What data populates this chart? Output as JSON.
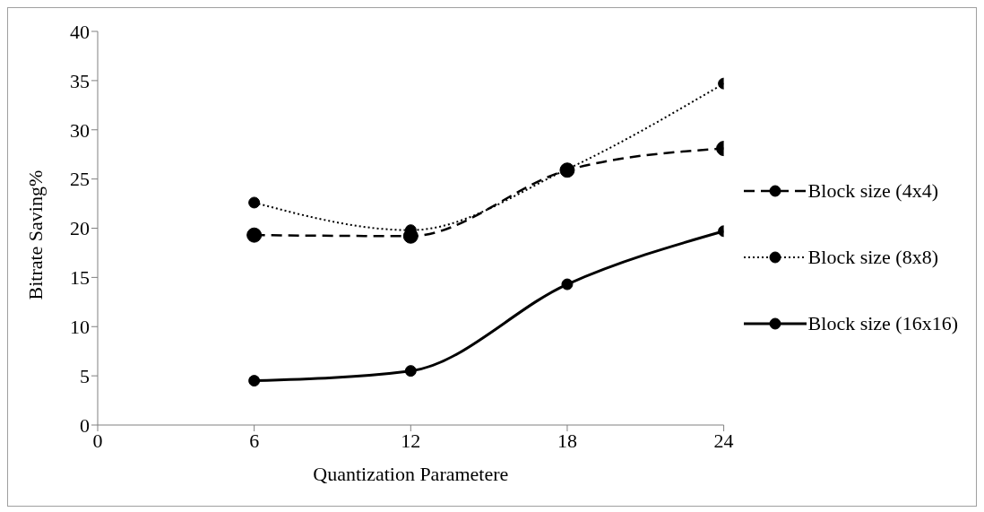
{
  "chart_data": {
    "type": "line",
    "xlabel": "Quantization Parametere",
    "ylabel": "Bitrate Saving%",
    "x": [
      6,
      12,
      18,
      24
    ],
    "xlim": [
      0,
      24
    ],
    "xticks": [
      0,
      6,
      12,
      18,
      24
    ],
    "ylim": [
      0,
      40
    ],
    "yticks": [
      0,
      5,
      10,
      15,
      20,
      25,
      30,
      35,
      40
    ],
    "grid": false,
    "legend": "right",
    "marker": "circle",
    "series": [
      {
        "name": "Block size (4x4)",
        "color": "#000000",
        "line_style": "dashed",
        "values": [
          19.3,
          19.2,
          25.9,
          28.1
        ]
      },
      {
        "name": "Block size (8x8)",
        "color": "#000000",
        "line_style": "dotted",
        "values": [
          22.6,
          19.8,
          26.0,
          34.7
        ]
      },
      {
        "name": "Block size (16x16)",
        "color": "#000000",
        "line_style": "solid",
        "values": [
          4.5,
          5.5,
          14.3,
          19.7
        ]
      }
    ]
  }
}
